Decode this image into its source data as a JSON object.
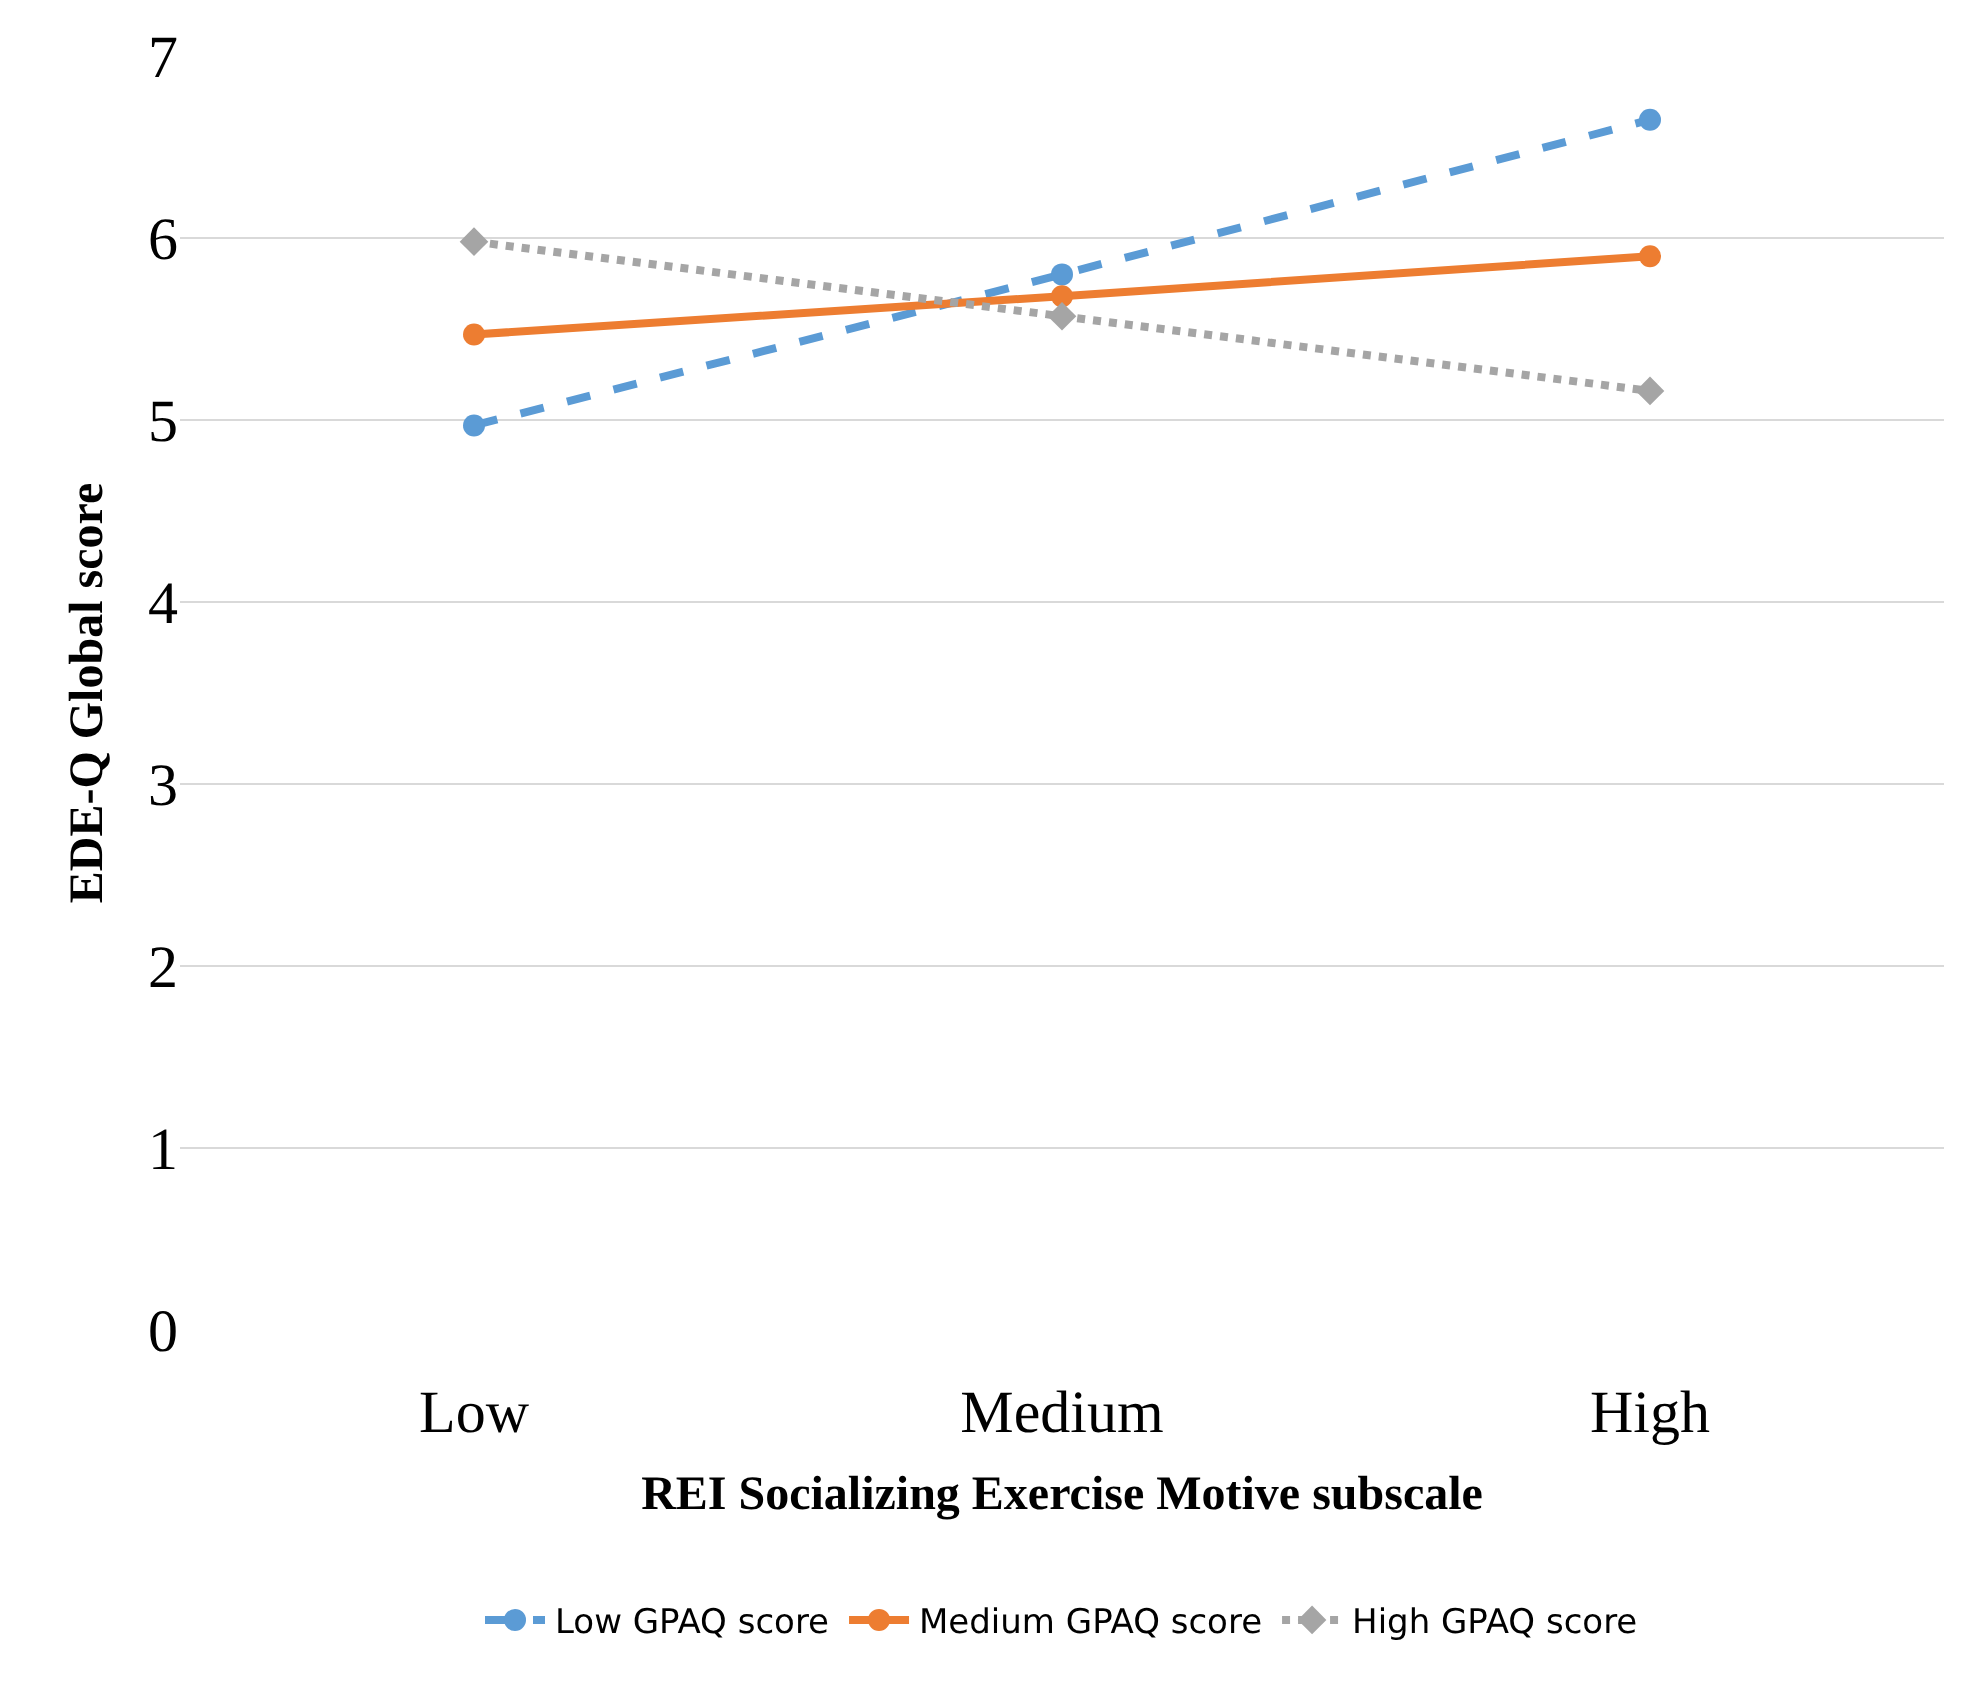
{
  "chart_data": {
    "type": "line",
    "xlabel": "REI Socializing Exercise Motive subscale",
    "ylabel": "EDE-Q Global score",
    "categories": [
      "Low",
      "Medium",
      "High"
    ],
    "series": [
      {
        "name": "Low GPAQ score",
        "color": "#5b9bd5",
        "values": [
          4.97,
          5.8,
          6.65
        ],
        "line_style": "dashed",
        "marker": "circle"
      },
      {
        "name": "Medium GPAQ score",
        "color": "#ed7d31",
        "values": [
          5.47,
          5.68,
          5.9
        ],
        "line_style": "solid",
        "marker": "circle"
      },
      {
        "name": "High GPAQ score",
        "color": "#a5a5a5",
        "values": [
          5.98,
          5.57,
          5.16
        ],
        "line_style": "dotted",
        "marker": "diamond"
      }
    ],
    "ylim": [
      0,
      7
    ],
    "yticks": [
      0,
      1,
      2,
      3,
      4,
      5,
      6,
      7
    ],
    "grid": "y",
    "legend": "bottom"
  }
}
